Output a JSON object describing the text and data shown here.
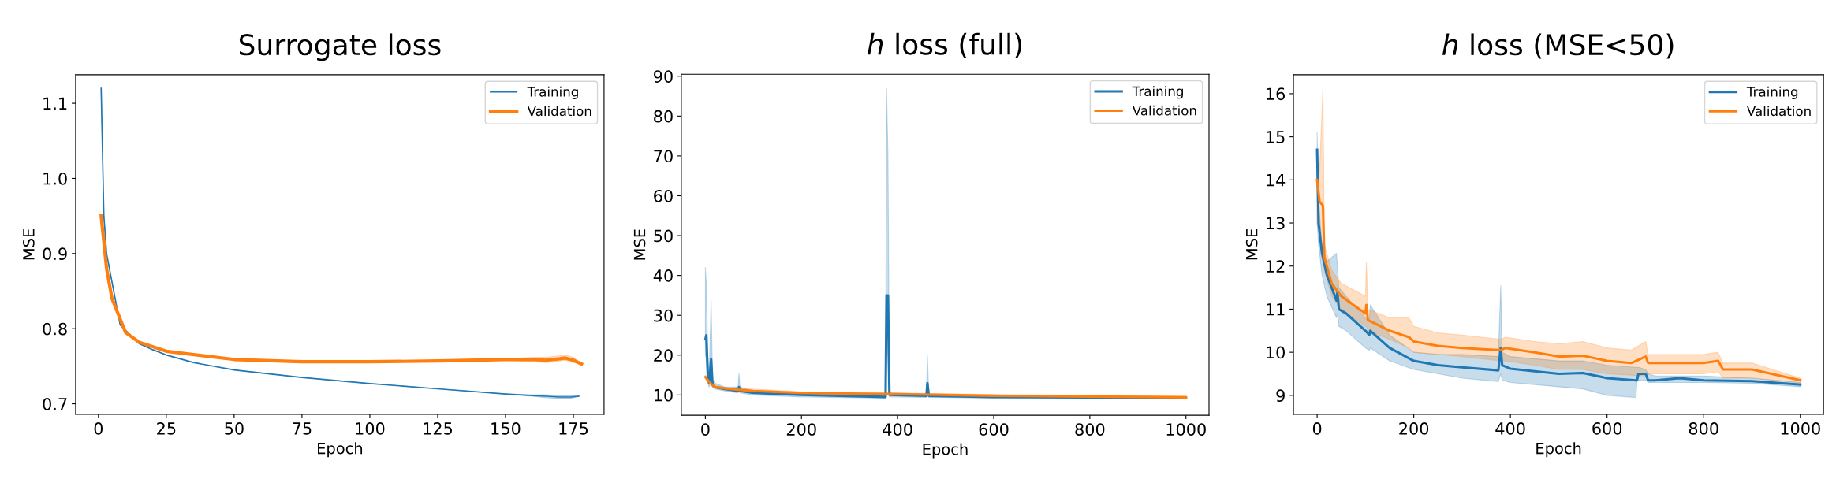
{
  "chart_data": [
    {
      "type": "line",
      "title": "Surrogate loss",
      "xlabel": "Epoch",
      "ylabel": "MSE",
      "xlim": [
        -8.4,
        186.3
      ],
      "ylim": [
        0.686,
        1.138
      ],
      "xticks": [
        0,
        25,
        50,
        75,
        100,
        125,
        150,
        175
      ],
      "yticks": [
        {
          "value": 0.7,
          "label": "0.7"
        },
        {
          "value": 0.8,
          "label": "0.8"
        },
        {
          "value": 0.9,
          "label": "0.9"
        },
        {
          "value": 1.0,
          "label": "1.0"
        },
        {
          "value": 1.1,
          "label": "1.1"
        }
      ],
      "legend": "top right",
      "grid": false,
      "series": [
        {
          "name": "Training",
          "color": "#1f77b4",
          "x": [
            1,
            2,
            3,
            8,
            15,
            20,
            25,
            35,
            50,
            75,
            100,
            125,
            150,
            160,
            165,
            170,
            174,
            177
          ],
          "values": [
            1.12,
            0.95,
            0.9,
            0.805,
            0.78,
            0.772,
            0.765,
            0.755,
            0.745,
            0.735,
            0.727,
            0.72,
            0.713,
            0.711,
            0.71,
            0.709,
            0.709,
            0.71
          ],
          "lower": [
            1.12,
            0.95,
            0.9,
            0.805,
            0.78,
            0.772,
            0.765,
            0.755,
            0.745,
            0.735,
            0.727,
            0.72,
            0.713,
            0.71,
            0.708,
            0.707,
            0.707,
            0.71
          ],
          "upper": [
            1.12,
            0.95,
            0.9,
            0.805,
            0.78,
            0.772,
            0.765,
            0.755,
            0.745,
            0.735,
            0.727,
            0.72,
            0.713,
            0.712,
            0.712,
            0.711,
            0.711,
            0.71
          ]
        },
        {
          "name": "Validation",
          "color": "#ff7f0e",
          "x": [
            1,
            3,
            5,
            10,
            15,
            25,
            50,
            75,
            100,
            125,
            150,
            160,
            165,
            170,
            172,
            175,
            178
          ],
          "values": [
            0.95,
            0.88,
            0.84,
            0.795,
            0.782,
            0.77,
            0.759,
            0.756,
            0.756,
            0.757,
            0.759,
            0.759,
            0.758,
            0.76,
            0.761,
            0.758,
            0.753
          ],
          "lower": [
            0.95,
            0.88,
            0.84,
            0.795,
            0.782,
            0.77,
            0.759,
            0.756,
            0.756,
            0.757,
            0.758,
            0.756,
            0.755,
            0.757,
            0.758,
            0.755,
            0.753
          ],
          "upper": [
            0.95,
            0.88,
            0.84,
            0.795,
            0.782,
            0.77,
            0.759,
            0.756,
            0.756,
            0.757,
            0.76,
            0.762,
            0.762,
            0.764,
            0.765,
            0.762,
            0.753
          ]
        }
      ]
    },
    {
      "type": "line",
      "title": "ℎ loss (full)",
      "xlabel": "Epoch",
      "ylabel": "MSE",
      "xlim": [
        -50,
        1048
      ],
      "ylim": [
        4.9,
        90.5
      ],
      "xticks": [
        0,
        200,
        400,
        600,
        800,
        1000
      ],
      "yticks": [
        10,
        20,
        30,
        40,
        50,
        60,
        70,
        80,
        90
      ],
      "legend": "top right",
      "grid": false,
      "series": [
        {
          "name": "Training",
          "color": "#1f77b4",
          "x": [
            0,
            2,
            5,
            8,
            12,
            15,
            20,
            40,
            68,
            70,
            72,
            100,
            200,
            375,
            377,
            380,
            383,
            460,
            462,
            465,
            600,
            800,
            1000
          ],
          "values": [
            24,
            25,
            15,
            13,
            19,
            12.5,
            12,
            11.5,
            11,
            12,
            11,
            10.5,
            10,
            9.5,
            35,
            35,
            10,
            9.8,
            13,
            9.8,
            9.5,
            9.4,
            9.2
          ],
          "lower": [
            20,
            19,
            13,
            12,
            14,
            12,
            11.5,
            11,
            10.5,
            11,
            10.5,
            10,
            9.5,
            9.2,
            20,
            20,
            9.5,
            9.4,
            10,
            9.4,
            9.2,
            9.1,
            9
          ],
          "upper": [
            42,
            38,
            20,
            15,
            34,
            14,
            13,
            12,
            12,
            15.5,
            12,
            11,
            10.5,
            10,
            87,
            70,
            10.5,
            10.2,
            20,
            10.2,
            9.8,
            9.7,
            9.4
          ]
        },
        {
          "name": "Validation",
          "color": "#ff7f0e",
          "x": [
            0,
            10,
            20,
            50,
            100,
            200,
            400,
            600,
            800,
            1000
          ],
          "values": [
            14.5,
            13,
            12,
            11.5,
            11,
            10.5,
            10.2,
            9.8,
            9.6,
            9.4
          ],
          "lower": [
            14,
            12.5,
            11.6,
            11.2,
            10.7,
            10.2,
            9.9,
            9.5,
            9.3,
            9.1
          ],
          "upper": [
            15,
            13.5,
            12.4,
            11.8,
            11.5,
            10.8,
            10.5,
            10.1,
            9.9,
            9.7
          ]
        }
      ]
    },
    {
      "type": "line",
      "title": "ℎ loss (MSE<50)",
      "xlabel": "Epoch",
      "ylabel": "MSE",
      "xlim": [
        -49,
        1048
      ],
      "ylim": [
        8.56,
        16.44
      ],
      "xticks": [
        0,
        200,
        400,
        600,
        800,
        1000
      ],
      "yticks": [
        9,
        10,
        11,
        12,
        13,
        14,
        15,
        16
      ],
      "legend": "top right",
      "grid": false,
      "series": [
        {
          "name": "Training",
          "color": "#1f77b4",
          "x": [
            0,
            3,
            10,
            20,
            40,
            42,
            45,
            60,
            100,
            108,
            110,
            150,
            200,
            250,
            300,
            375,
            380,
            383,
            400,
            500,
            550,
            600,
            660,
            662,
            665,
            680,
            685,
            700,
            750,
            800,
            900,
            1000
          ],
          "values": [
            14.7,
            13,
            12.3,
            11.8,
            11.2,
            11.4,
            11,
            10.9,
            10.5,
            10.4,
            10.5,
            10.1,
            9.8,
            9.7,
            9.65,
            9.58,
            10.1,
            9.7,
            9.62,
            9.5,
            9.52,
            9.4,
            9.35,
            9.35,
            9.5,
            9.5,
            9.35,
            9.35,
            9.4,
            9.35,
            9.33,
            9.25
          ],
          "lower": [
            13,
            12.5,
            11.8,
            11.3,
            10.8,
            10.9,
            10.6,
            10.5,
            10.1,
            10.05,
            10.1,
            9.8,
            9.6,
            9.5,
            9.4,
            9.32,
            9.5,
            9.35,
            9.3,
            9.2,
            9.15,
            9.0,
            8.95,
            9.35,
            9.35,
            9.35,
            9.3,
            9.3,
            9.3,
            9.3,
            9.28,
            9.2
          ],
          "upper": [
            15.1,
            13.5,
            12.5,
            12.1,
            12.3,
            12.0,
            11.5,
            11.3,
            10.8,
            10.7,
            11.1,
            10.4,
            10.0,
            9.95,
            9.95,
            9.9,
            11.55,
            10.0,
            9.9,
            9.8,
            9.8,
            9.7,
            9.65,
            9.65,
            9.65,
            9.6,
            9.5,
            9.45,
            9.45,
            9.45,
            9.4,
            9.3
          ]
        },
        {
          "name": "Validation",
          "color": "#ff7f0e",
          "x": [
            0,
            5,
            12,
            15,
            30,
            50,
            100,
            102,
            105,
            150,
            190,
            200,
            250,
            300,
            380,
            390,
            450,
            500,
            550,
            600,
            650,
            680,
            685,
            800,
            830,
            840,
            900,
            1000
          ],
          "values": [
            14.0,
            13.5,
            13.4,
            12.2,
            11.6,
            11.3,
            10.9,
            11.1,
            10.75,
            10.5,
            10.35,
            10.25,
            10.15,
            10.1,
            10.05,
            10.1,
            10.0,
            9.9,
            9.92,
            9.8,
            9.75,
            9.9,
            9.75,
            9.75,
            9.8,
            9.6,
            9.6,
            9.35
          ],
          "lower": [
            13.0,
            12.8,
            12.4,
            11.9,
            11.3,
            11.0,
            10.6,
            10.6,
            10.5,
            10.3,
            10.1,
            10.0,
            9.95,
            9.9,
            9.8,
            9.8,
            9.7,
            9.6,
            9.6,
            9.5,
            9.47,
            9.45,
            9.5,
            9.5,
            9.55,
            9.4,
            9.4,
            9.3
          ],
          "upper": [
            14.5,
            14.2,
            16.15,
            12.5,
            11.9,
            11.6,
            11.3,
            12.1,
            11.0,
            10.8,
            10.8,
            10.6,
            10.45,
            10.4,
            10.3,
            10.35,
            10.25,
            10.2,
            10.25,
            10.1,
            10.05,
            10.25,
            9.95,
            9.95,
            10.0,
            9.75,
            9.75,
            9.4
          ]
        }
      ]
    }
  ]
}
